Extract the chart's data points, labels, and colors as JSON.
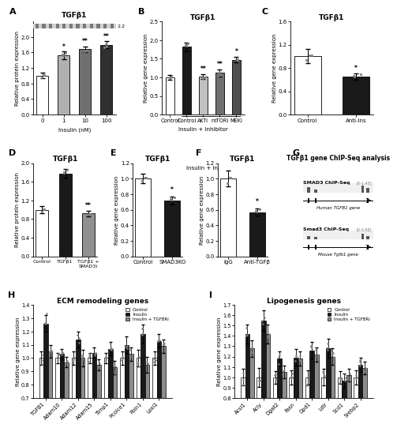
{
  "panel_A": {
    "title": "TGFβ1",
    "xlabel": "Insulin (nM)",
    "ylabel": "Relative protein expression",
    "categories": [
      "0",
      "1",
      "10",
      "100"
    ],
    "values": [
      1.0,
      1.52,
      1.68,
      1.8
    ],
    "errors": [
      0.07,
      0.1,
      0.08,
      0.09
    ],
    "colors": [
      "white",
      "#b0b0b0",
      "#707070",
      "#303030"
    ],
    "ylim": [
      0.0,
      2.4
    ],
    "yticks": [
      0.0,
      0.4,
      0.8,
      1.2,
      1.6,
      2.0
    ],
    "sig": [
      "",
      "*",
      "**",
      "**"
    ]
  },
  "panel_B": {
    "title": "TGFβ1",
    "xlabel": "Insulin + Inhibitor",
    "ylabel": "Relative gene expression",
    "categories": [
      "Control",
      "Control",
      "AKTi",
      "mTORi",
      "MEKi"
    ],
    "values": [
      1.0,
      1.82,
      1.02,
      1.12,
      1.47
    ],
    "errors": [
      0.06,
      0.12,
      0.07,
      0.1,
      0.08
    ],
    "colors": [
      "white",
      "#1a1a1a",
      "#c0c0c0",
      "#707070",
      "#505050"
    ],
    "ylim": [
      0.0,
      2.5
    ],
    "yticks": [
      0.0,
      0.5,
      1.0,
      1.5,
      2.0,
      2.5
    ],
    "sig": [
      "",
      "",
      "**",
      "**",
      "*"
    ]
  },
  "panel_C": {
    "title": "TGFβ1",
    "xlabel": "",
    "ylabel": "Relative gene expression",
    "categories": [
      "Control",
      "Anti-Ins"
    ],
    "values": [
      1.0,
      0.65
    ],
    "errors": [
      0.12,
      0.05
    ],
    "colors": [
      "white",
      "#1a1a1a"
    ],
    "ylim": [
      0.0,
      1.6
    ],
    "yticks": [
      0.0,
      0.4,
      0.8,
      1.2,
      1.6
    ],
    "sig": [
      "",
      "*"
    ]
  },
  "panel_D": {
    "title": "TGFβ1",
    "xlabel": "",
    "ylabel": "Relative protein expression",
    "categories": [
      "Control",
      "TGFβ1",
      "TGFβ1 +\nSMAD3i"
    ],
    "values": [
      1.0,
      1.78,
      0.92
    ],
    "errors": [
      0.07,
      0.09,
      0.06
    ],
    "colors": [
      "white",
      "#1a1a1a",
      "#909090"
    ],
    "ylim": [
      0.0,
      2.0
    ],
    "yticks": [
      0.0,
      0.4,
      0.8,
      1.2,
      1.6,
      2.0
    ],
    "sig": [
      "",
      "",
      "**"
    ]
  },
  "panel_E": {
    "title": "TGFβ1",
    "xlabel": "",
    "ylabel": "Relative gene expression",
    "categories": [
      "Control",
      "SMAD3KO"
    ],
    "values": [
      1.0,
      0.72
    ],
    "errors": [
      0.06,
      0.05
    ],
    "colors": [
      "white",
      "#1a1a1a"
    ],
    "ylim": [
      0.0,
      1.2
    ],
    "yticks": [
      0.0,
      0.2,
      0.4,
      0.6,
      0.8,
      1.0,
      1.2
    ],
    "sig": [
      "",
      "*"
    ]
  },
  "panel_F": {
    "title": "TGFβ1",
    "xlabel": "",
    "ylabel": "Relative gene expression",
    "categories": [
      "IgG",
      "Anti-TGFβ"
    ],
    "values": [
      1.0,
      0.57
    ],
    "errors": [
      0.1,
      0.05
    ],
    "colors": [
      "white",
      "#1a1a1a"
    ],
    "ylim": [
      0.0,
      1.2
    ],
    "yticks": [
      0.0,
      0.2,
      0.4,
      0.6,
      0.8,
      1.0,
      1.2
    ],
    "sig": [
      "",
      "*"
    ]
  },
  "panel_H": {
    "title": "ECM remodeling genes",
    "xlabel": "",
    "ylabel": "Relative gene expression",
    "categories": [
      "TGFB1",
      "Adam10",
      "Adam12",
      "Adam15",
      "Timp1",
      "Pcolce1",
      "Fbln1",
      "Loxl1"
    ],
    "control": [
      1.0,
      1.0,
      1.0,
      1.0,
      1.0,
      1.0,
      1.0,
      1.0
    ],
    "insulin": [
      1.26,
      1.03,
      1.14,
      1.04,
      1.07,
      1.1,
      1.18,
      1.13
    ],
    "insulin_tgfbri": [
      1.05,
      0.97,
      1.0,
      0.95,
      0.93,
      1.03,
      0.95,
      1.09
    ],
    "control_err": [
      0.05,
      0.04,
      0.05,
      0.04,
      0.04,
      0.05,
      0.06,
      0.05
    ],
    "insulin_err": [
      0.06,
      0.04,
      0.06,
      0.04,
      0.05,
      0.06,
      0.07,
      0.05
    ],
    "insulin_tgfbri_err": [
      0.05,
      0.04,
      0.06,
      0.04,
      0.05,
      0.05,
      0.06,
      0.05
    ],
    "ylim": [
      0.7,
      1.4
    ],
    "yticks": [
      0.7,
      0.8,
      0.9,
      1.0,
      1.1,
      1.2,
      1.3,
      1.4
    ]
  },
  "panel_I": {
    "title": "Lipogenesis genes",
    "xlabel": "",
    "ylabel": "Relative gene expression",
    "categories": [
      "Acsl1",
      "Acly",
      "Dgat2",
      "Fasn",
      "Gpd1",
      "Ldlr",
      "Scd1",
      "Srebp2"
    ],
    "control": [
      1.0,
      1.0,
      1.0,
      1.0,
      1.0,
      1.0,
      1.0,
      1.0
    ],
    "insulin": [
      1.42,
      1.55,
      1.18,
      1.19,
      1.26,
      1.28,
      0.97,
      1.12
    ],
    "insulin_tgfbri": [
      1.28,
      1.42,
      1.05,
      1.18,
      1.22,
      1.2,
      1.02,
      1.09
    ],
    "control_err": [
      0.08,
      0.09,
      0.06,
      0.07,
      0.07,
      0.08,
      0.06,
      0.07
    ],
    "insulin_err": [
      0.09,
      0.1,
      0.07,
      0.08,
      0.08,
      0.09,
      0.07,
      0.07
    ],
    "insulin_tgfbri_err": [
      0.08,
      0.09,
      0.06,
      0.07,
      0.07,
      0.08,
      0.06,
      0.06
    ],
    "ylim": [
      0.8,
      1.7
    ],
    "yticks": [
      0.8,
      0.9,
      1.0,
      1.1,
      1.2,
      1.3,
      1.4,
      1.5,
      1.6,
      1.7
    ]
  },
  "panel_G": {
    "title": "TGFβ1 gene ChIP-Seq analysis"
  },
  "colors": {
    "white": "#ffffff",
    "light_gray": "#b8b8b8",
    "mid_gray": "#6e6e6e",
    "dark": "#1a1a1a",
    "control_bar": "#ffffff",
    "insulin_bar": "#1a1a1a",
    "insulin_tgfbri_bar": "#8c8c8c"
  },
  "scatter_color": "#808080",
  "errorbar_color": "#000000"
}
